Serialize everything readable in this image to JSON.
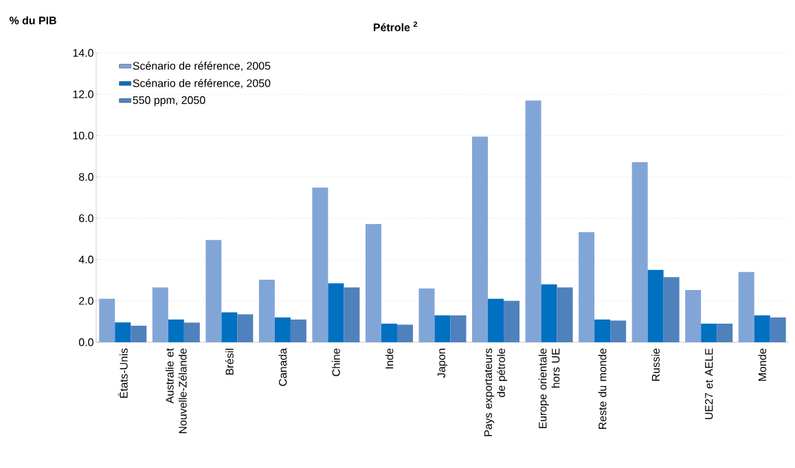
{
  "chart_data": {
    "type": "bar",
    "title": "Pétrole $^{2}$",
    "ylabel": "% du PIB",
    "categories": [
      "États-Unis",
      "Australie et Nouvelle-Zélande",
      "Brésil",
      "Canada",
      "Chine",
      "Inde",
      "Japon",
      "Pays exportateurs de pétrole",
      "Europe orientale hors UE",
      "Reste du monde",
      "Russie",
      "UE27 et AELE",
      "Monde"
    ],
    "series": [
      {
        "name": "Scénario de référence, 2005",
        "color": "#82a5d8",
        "values": [
          2.1,
          2.65,
          4.95,
          3.03,
          7.48,
          5.72,
          2.6,
          9.95,
          11.7,
          5.33,
          8.71,
          2.53,
          3.4
        ]
      },
      {
        "name": "Scénario de référence, 2050",
        "color": "#0070c0",
        "values": [
          0.96,
          1.1,
          1.45,
          1.2,
          2.85,
          0.9,
          1.3,
          2.1,
          2.8,
          1.1,
          3.5,
          0.9,
          1.3
        ]
      },
      {
        "name": "550 ppm, 2050",
        "color": "#4f81bd",
        "values": [
          0.8,
          0.95,
          1.35,
          1.1,
          2.65,
          0.85,
          1.3,
          2.0,
          2.65,
          1.05,
          3.15,
          0.9,
          1.2
        ]
      }
    ],
    "ylim": [
      0,
      14
    ],
    "yticks": [
      {
        "value": 0,
        "label": "0.0"
      },
      {
        "value": 2,
        "label": "2.0"
      },
      {
        "value": 4,
        "label": "4.0"
      },
      {
        "value": 6,
        "label": "6.0"
      },
      {
        "value": 8,
        "label": "8.0"
      },
      {
        "value": 10,
        "label": "10.0"
      },
      {
        "value": 12,
        "label": "12.0"
      },
      {
        "value": 14,
        "label": "14.0"
      }
    ],
    "grid": "y",
    "legend": "top left"
  }
}
